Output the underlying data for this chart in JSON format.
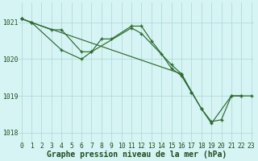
{
  "title": "Graphe pression niveau de la mer (hPa)",
  "xlabel_hours": [
    0,
    1,
    2,
    3,
    4,
    5,
    6,
    7,
    8,
    9,
    10,
    11,
    12,
    13,
    14,
    15,
    16,
    17,
    18,
    19,
    20,
    21,
    22,
    23
  ],
  "series1": {
    "hours": [
      0,
      1,
      3,
      4,
      6,
      7,
      8,
      9,
      11,
      12,
      13,
      14,
      15,
      16,
      17
    ],
    "values": [
      1021.1,
      1021.0,
      1020.8,
      1020.8,
      1020.2,
      1020.2,
      1020.55,
      1020.55,
      1020.9,
      1020.9,
      1020.5,
      1020.15,
      1019.75,
      1019.55,
      1019.1
    ]
  },
  "series2": {
    "hours": [
      0,
      1,
      4,
      6,
      7,
      11,
      12,
      15,
      16,
      17,
      18,
      19,
      20,
      21,
      22
    ],
    "values": [
      1021.1,
      1021.0,
      1020.25,
      1020.0,
      1020.2,
      1020.85,
      1020.7,
      1019.85,
      1019.6,
      1019.1,
      1018.65,
      1018.3,
      1018.35,
      1019.0,
      1019.0
    ]
  },
  "series3": {
    "hours": [
      0,
      1,
      16,
      18,
      19,
      21,
      22,
      23
    ],
    "values": [
      1021.1,
      1021.0,
      1019.6,
      1018.65,
      1018.25,
      1019.0,
      1019.0,
      1019.0
    ]
  },
  "ylim": [
    1017.75,
    1021.55
  ],
  "yticks": [
    1018,
    1019,
    1020,
    1021
  ],
  "line_color": "#2d6a2d",
  "bg_color": "#d7f4f4",
  "grid_color": "#b0dada",
  "label_color": "#1a4d1a",
  "title_color": "#1a4d1a",
  "title_fontsize": 7.0,
  "tick_fontsize": 5.8,
  "marker_size": 3.5,
  "linewidth": 0.85
}
